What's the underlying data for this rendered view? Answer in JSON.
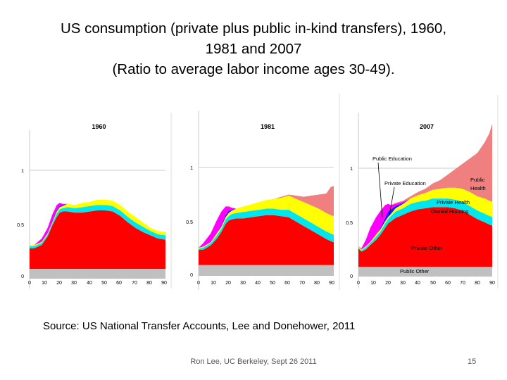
{
  "slide": {
    "title_lines": [
      "US consumption (private plus public in-kind transfers), 1960,",
      "1981 and 2007",
      "(Ratio to average labor income ages 30-49)."
    ],
    "source": "Source: US National Transfer Accounts, Lee and Donehower, 2011",
    "footer": "Ron Lee, UC Berkeley, Sept 26 2011",
    "page_number": "15"
  },
  "colors": {
    "public_other": "#c0c0c0",
    "private_other": "#ff0000",
    "owned_housing": "#00e5ee",
    "private_health": "#ffff00",
    "private_education": "#1a1aff",
    "public_education": "#ff00ff",
    "public_health": "#f08080"
  },
  "chart_data": [
    {
      "type": "area",
      "stacked": true,
      "title": "1960",
      "x": [
        0,
        3,
        8,
        12,
        15,
        18,
        20,
        22,
        25,
        30,
        35,
        40,
        45,
        50,
        55,
        60,
        65,
        70,
        75,
        80,
        85,
        90
      ],
      "xticks": [
        0,
        10,
        20,
        30,
        40,
        50,
        60,
        70,
        80,
        90
      ],
      "ylim": [
        0,
        1.45
      ],
      "yticks": [
        0,
        0.5,
        1
      ],
      "ytick_labels": [
        "0",
        "0.5",
        "1"
      ],
      "series": [
        {
          "key": "public_other",
          "values": [
            0.09,
            0.09,
            0.09,
            0.09,
            0.09,
            0.09,
            0.09,
            0.09,
            0.09,
            0.09,
            0.09,
            0.09,
            0.09,
            0.09,
            0.09,
            0.09,
            0.09,
            0.09,
            0.09,
            0.09,
            0.09,
            0.09
          ]
        },
        {
          "key": "private_other",
          "values": [
            0.19,
            0.19,
            0.22,
            0.3,
            0.4,
            0.48,
            0.52,
            0.53,
            0.53,
            0.52,
            0.52,
            0.53,
            0.54,
            0.54,
            0.53,
            0.49,
            0.43,
            0.38,
            0.34,
            0.31,
            0.28,
            0.27
          ]
        },
        {
          "key": "owned_housing",
          "values": [
            0.02,
            0.02,
            0.02,
            0.02,
            0.02,
            0.03,
            0.03,
            0.03,
            0.04,
            0.04,
            0.05,
            0.05,
            0.05,
            0.05,
            0.05,
            0.05,
            0.05,
            0.05,
            0.05,
            0.04,
            0.04,
            0.04
          ]
        },
        {
          "key": "private_health",
          "values": [
            0.01,
            0.01,
            0.01,
            0.01,
            0.01,
            0.02,
            0.02,
            0.02,
            0.03,
            0.03,
            0.04,
            0.04,
            0.05,
            0.05,
            0.05,
            0.05,
            0.05,
            0.05,
            0.04,
            0.03,
            0.03,
            0.03
          ]
        },
        {
          "key": "private_education",
          "values": [
            0,
            0,
            0,
            0,
            0.01,
            0.01,
            0.01,
            0.01,
            0,
            0,
            0,
            0,
            0,
            0,
            0,
            0,
            0,
            0,
            0,
            0,
            0,
            0
          ]
        },
        {
          "key": "public_education",
          "values": [
            0,
            0,
            0.03,
            0.05,
            0.06,
            0.05,
            0.03,
            0.01,
            0,
            0,
            0,
            0,
            0,
            0,
            0,
            0,
            0,
            0,
            0,
            0,
            0,
            0
          ]
        },
        {
          "key": "public_health",
          "values": [
            0,
            0,
            0,
            0,
            0,
            0,
            0,
            0,
            0,
            0,
            0,
            0,
            0,
            0,
            0,
            0,
            0,
            0,
            0,
            0,
            0,
            0
          ]
        }
      ]
    },
    {
      "type": "area",
      "stacked": true,
      "title": "1981",
      "x": [
        0,
        3,
        8,
        12,
        15,
        18,
        20,
        22,
        25,
        30,
        35,
        40,
        45,
        50,
        55,
        60,
        65,
        70,
        75,
        80,
        85,
        88,
        90
      ],
      "xticks": [
        0,
        10,
        20,
        30,
        40,
        50,
        60,
        70,
        80,
        90
      ],
      "ylim": [
        0,
        1.45
      ],
      "yticks": [
        0,
        0.5,
        1
      ],
      "ytick_labels": [
        "0",
        "0.5",
        "1"
      ],
      "series": [
        {
          "key": "public_other",
          "values": [
            0.1,
            0.1,
            0.1,
            0.1,
            0.1,
            0.1,
            0.1,
            0.1,
            0.1,
            0.1,
            0.1,
            0.1,
            0.1,
            0.1,
            0.1,
            0.1,
            0.1,
            0.1,
            0.1,
            0.1,
            0.1,
            0.1,
            0.1
          ]
        },
        {
          "key": "private_other",
          "values": [
            0.14,
            0.14,
            0.18,
            0.24,
            0.3,
            0.38,
            0.41,
            0.42,
            0.43,
            0.43,
            0.44,
            0.45,
            0.46,
            0.46,
            0.45,
            0.44,
            0.4,
            0.36,
            0.32,
            0.28,
            0.24,
            0.22,
            0.21
          ]
        },
        {
          "key": "owned_housing",
          "values": [
            0.01,
            0.02,
            0.02,
            0.03,
            0.03,
            0.04,
            0.04,
            0.05,
            0.05,
            0.06,
            0.06,
            0.06,
            0.06,
            0.06,
            0.06,
            0.07,
            0.07,
            0.07,
            0.07,
            0.07,
            0.07,
            0.07,
            0.07
          ]
        },
        {
          "key": "private_health",
          "values": [
            0.01,
            0.01,
            0.01,
            0.02,
            0.02,
            0.02,
            0.03,
            0.03,
            0.04,
            0.05,
            0.06,
            0.07,
            0.08,
            0.09,
            0.11,
            0.13,
            0.14,
            0.15,
            0.16,
            0.17,
            0.17,
            0.17,
            0.17
          ]
        },
        {
          "key": "private_education",
          "values": [
            0,
            0,
            0,
            0,
            0.01,
            0.02,
            0.02,
            0.01,
            0,
            0,
            0,
            0,
            0,
            0,
            0,
            0,
            0,
            0,
            0,
            0,
            0,
            0,
            0
          ]
        },
        {
          "key": "public_education",
          "values": [
            0,
            0.03,
            0.08,
            0.12,
            0.13,
            0.08,
            0.04,
            0.02,
            0,
            0,
            0,
            0,
            0,
            0,
            0,
            0,
            0,
            0,
            0,
            0,
            0,
            0,
            0
          ]
        },
        {
          "key": "public_health",
          "values": [
            0,
            0,
            0,
            0,
            0,
            0,
            0,
            0,
            0,
            0,
            0,
            0,
            0,
            0,
            0.01,
            0.01,
            0.03,
            0.05,
            0.09,
            0.13,
            0.18,
            0.26,
            0.28
          ]
        }
      ]
    },
    {
      "type": "area",
      "stacked": true,
      "title": "2007",
      "x": [
        0,
        2,
        5,
        8,
        12,
        15,
        18,
        20,
        22,
        25,
        30,
        35,
        40,
        45,
        50,
        55,
        60,
        65,
        70,
        75,
        80,
        85,
        88,
        90
      ],
      "xticks": [
        0,
        10,
        20,
        30,
        40,
        50,
        60,
        70,
        80,
        90
      ],
      "ylim": [
        0,
        1.45
      ],
      "yticks": [
        0,
        0.5,
        1
      ],
      "ytick_labels": [
        "0",
        "0.5",
        "1"
      ],
      "series": [
        {
          "key": "public_other",
          "values": [
            0.09,
            0.09,
            0.09,
            0.09,
            0.09,
            0.09,
            0.09,
            0.09,
            0.09,
            0.09,
            0.09,
            0.09,
            0.09,
            0.09,
            0.09,
            0.09,
            0.09,
            0.09,
            0.09,
            0.09,
            0.09,
            0.09,
            0.09,
            0.09
          ]
        },
        {
          "key": "private_other",
          "values": [
            0.17,
            0.14,
            0.16,
            0.2,
            0.25,
            0.3,
            0.36,
            0.4,
            0.42,
            0.45,
            0.48,
            0.51,
            0.53,
            0.54,
            0.55,
            0.55,
            0.55,
            0.54,
            0.52,
            0.48,
            0.44,
            0.41,
            0.39,
            0.38
          ]
        },
        {
          "key": "owned_housing",
          "values": [
            0.01,
            0.01,
            0.02,
            0.02,
            0.03,
            0.03,
            0.04,
            0.04,
            0.05,
            0.06,
            0.06,
            0.07,
            0.07,
            0.07,
            0.08,
            0.08,
            0.08,
            0.08,
            0.08,
            0.08,
            0.08,
            0.08,
            0.08,
            0.08
          ]
        },
        {
          "key": "private_health",
          "values": [
            0.01,
            0.01,
            0.01,
            0.01,
            0.02,
            0.02,
            0.02,
            0.02,
            0.02,
            0.03,
            0.04,
            0.05,
            0.06,
            0.07,
            0.08,
            0.09,
            0.1,
            0.11,
            0.12,
            0.13,
            0.13,
            0.14,
            0.14,
            0.14
          ]
        },
        {
          "key": "private_education",
          "values": [
            0,
            0,
            0,
            0,
            0,
            0.01,
            0.03,
            0.05,
            0.04,
            0.02,
            0.01,
            0,
            0,
            0,
            0,
            0,
            0,
            0,
            0,
            0,
            0,
            0,
            0,
            0
          ]
        },
        {
          "key": "public_education",
          "values": [
            0,
            0.01,
            0.06,
            0.13,
            0.16,
            0.16,
            0.12,
            0.07,
            0.04,
            0.02,
            0.01,
            0,
            0,
            0,
            0,
            0,
            0,
            0,
            0,
            0,
            0,
            0,
            0,
            0
          ]
        },
        {
          "key": "public_health",
          "values": [
            0,
            0,
            0,
            0,
            0,
            0,
            0,
            0,
            0,
            0.01,
            0.01,
            0.02,
            0.03,
            0.04,
            0.06,
            0.08,
            0.12,
            0.17,
            0.23,
            0.31,
            0.4,
            0.52,
            0.62,
            0.72
          ]
        }
      ],
      "annotations": [
        {
          "text": "Public Education",
          "color": "#000000"
        },
        {
          "text": "Private Education",
          "color": "#000000"
        },
        {
          "text": "Public",
          "color": "#000000"
        },
        {
          "text": "Health",
          "color": "#000000"
        },
        {
          "text": "Private Health",
          "color": "#000000"
        },
        {
          "text": "Owned Housing",
          "color": "#000000"
        },
        {
          "text": "Private Other",
          "color": "#000000"
        },
        {
          "text": "Public  Other",
          "color": "#000000"
        }
      ]
    }
  ]
}
